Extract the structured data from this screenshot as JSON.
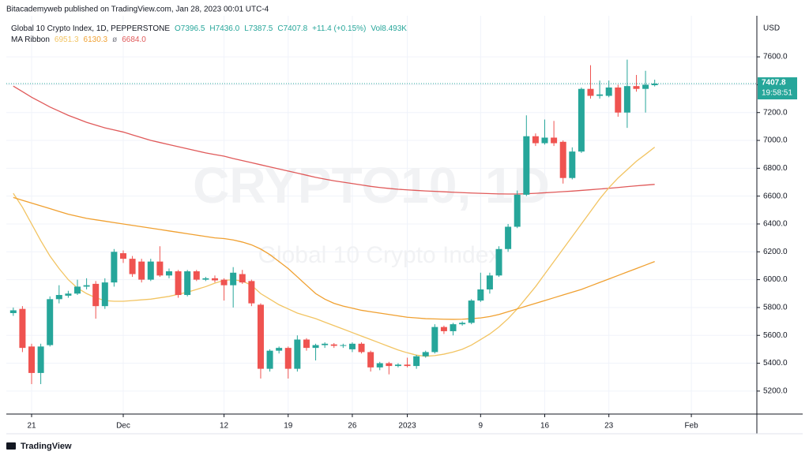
{
  "chart_data": {
    "type": "candlestick",
    "published": "Bitacademyweb published on TradingView.com, Jan 28, 2023 00:01 UTC-4",
    "symbol": "Global 10 Crypto Index, 1D, PEPPERSTONE",
    "ohlc_legend": [
      "O7396.5",
      "H7436.0",
      "L7387.5",
      "C7407.8",
      "+11.4 (+0.15%)",
      "Vol8.493K"
    ],
    "ma_legend": {
      "label": "MA Ribbon",
      "items": [
        {
          "text": "6951.3",
          "color": "#f2c462"
        },
        {
          "text": "6130.3",
          "color": "#f0a030"
        },
        {
          "text": "ø",
          "color": "#787b86"
        },
        {
          "text": "6684.0",
          "color": "#e05a5a"
        }
      ]
    },
    "watermark": [
      "CRYPTO10, 1D",
      "Global 10 Crypto Index"
    ],
    "currency": "USD",
    "last_price": 7407.8,
    "countdown": "19:58:51",
    "brand": "TradingView",
    "up_color": "#26a69a",
    "down_color": "#ef5350",
    "grid": true,
    "xlim": [
      -0.76,
      81.15
    ],
    "xticks": [
      {
        "value": 2,
        "label": "21"
      },
      {
        "value": 12,
        "label": "Dec"
      },
      {
        "value": 23,
        "label": "12"
      },
      {
        "value": 30,
        "label": "19"
      },
      {
        "value": 37,
        "label": "26"
      },
      {
        "value": 43,
        "label": "2023"
      },
      {
        "value": 51,
        "label": "9"
      },
      {
        "value": 58,
        "label": "16"
      },
      {
        "value": 65,
        "label": "23"
      },
      {
        "value": 74,
        "label": "Feb"
      }
    ],
    "ylim": [
      5035,
      7895
    ],
    "yticks": [
      {
        "value": 5200,
        "label": "5200.0"
      },
      {
        "value": 5400,
        "label": "5400.0"
      },
      {
        "value": 5600,
        "label": "5600.0"
      },
      {
        "value": 5800,
        "label": "5800.0"
      },
      {
        "value": 6000,
        "label": "6000.0"
      },
      {
        "value": 6200,
        "label": "6200.0"
      },
      {
        "value": 6400,
        "label": "6400.0"
      },
      {
        "value": 6600,
        "label": "6600.0"
      },
      {
        "value": 6800,
        "label": "6800.0"
      },
      {
        "value": 7000,
        "label": "7000.0"
      },
      {
        "value": 7200,
        "label": "7200.0"
      },
      {
        "value": 7400,
        "label": "7400.0"
      },
      {
        "value": 7600,
        "label": "7600.0"
      }
    ],
    "open": [
      5760,
      5790,
      5520,
      5330,
      5530,
      5860,
      5885,
      5900,
      5950,
      5970,
      5810,
      5980,
      6190,
      6150,
      6130,
      6000,
      6130,
      6030,
      6060,
      5890,
      6060,
      6000,
      6010,
      6000,
      5960,
      6040,
      5990,
      5820,
      5360,
      5490,
      5510,
      5360,
      5570,
      5510,
      5530,
      5535,
      5525,
      5500,
      5540,
      5480,
      5370,
      5400,
      5380,
      5390,
      5380,
      5450,
      5480,
      5660,
      5630,
      5680,
      5690,
      5850,
      5930,
      6030,
      6220,
      6380,
      6610,
      7030,
      6980,
      7020,
      6990,
      6730,
      6920,
      7370,
      7320,
      7320,
      7380,
      7200,
      7390,
      7370,
      7396.5
    ],
    "high": [
      5800,
      5810,
      5540,
      5540,
      5880,
      5960,
      5920,
      6000,
      6010,
      5990,
      6010,
      6220,
      6210,
      6170,
      6150,
      6150,
      6240,
      6080,
      6070,
      6070,
      6070,
      6020,
      6030,
      6010,
      6090,
      6070,
      6000,
      5830,
      5500,
      5520,
      5520,
      5600,
      5580,
      5540,
      5550,
      5545,
      5540,
      5550,
      5550,
      5490,
      5410,
      5410,
      5400,
      5440,
      5460,
      5490,
      5680,
      5670,
      5690,
      5700,
      5860,
      6050,
      6050,
      6240,
      6400,
      6640,
      7180,
      7050,
      7150,
      7140,
      7000,
      6950,
      7380,
      7540,
      7430,
      7430,
      7400,
      7580,
      7470,
      7500,
      7436
    ],
    "low": [
      5740,
      5480,
      5250,
      5250,
      5520,
      5830,
      5870,
      5890,
      5930,
      5720,
      5790,
      5950,
      6120,
      6020,
      5980,
      5990,
      6020,
      6010,
      5870,
      5880,
      5990,
      5990,
      5980,
      5850,
      5800,
      5970,
      5810,
      5290,
      5340,
      5470,
      5290,
      5340,
      5490,
      5420,
      5510,
      5510,
      5510,
      5480,
      5470,
      5340,
      5350,
      5320,
      5370,
      5370,
      5360,
      5440,
      5470,
      5610,
      5600,
      5670,
      5680,
      5840,
      5900,
      6020,
      6200,
      6370,
      6600,
      6960,
      6970,
      6960,
      6690,
      6720,
      6910,
      7300,
      7300,
      7310,
      7170,
      7090,
      7350,
      7200,
      7387.5
    ],
    "close": [
      5780,
      5510,
      5330,
      5520,
      5860,
      5890,
      5900,
      5950,
      5960,
      5810,
      5980,
      6200,
      6150,
      6040,
      6000,
      6130,
      6030,
      6060,
      5890,
      6060,
      6000,
      6010,
      5995,
      5960,
      6050,
      5980,
      5830,
      5360,
      5490,
      5510,
      5360,
      5570,
      5510,
      5530,
      5540,
      5525,
      5530,
      5540,
      5480,
      5370,
      5400,
      5380,
      5390,
      5380,
      5450,
      5480,
      5660,
      5630,
      5680,
      5690,
      5850,
      5930,
      6030,
      6220,
      6380,
      6610,
      7030,
      6980,
      7020,
      6980,
      6730,
      6920,
      7370,
      7320,
      7330,
      7380,
      7200,
      7390,
      7370,
      7400,
      7407.8
    ],
    "series": [
      {
        "color": "#e05a5a",
        "values": [
          7390,
          7350,
          7310,
          7275,
          7240,
          7210,
          7180,
          7155,
          7130,
          7110,
          7090,
          7075,
          7060,
          7040,
          7020,
          7000,
          6985,
          6970,
          6955,
          6940,
          6925,
          6910,
          6898,
          6887,
          6870,
          6855,
          6840,
          6825,
          6810,
          6795,
          6780,
          6765,
          6750,
          6735,
          6722,
          6710,
          6700,
          6690,
          6680,
          6670,
          6662,
          6655,
          6649,
          6645,
          6641,
          6637,
          6634,
          6631,
          6628,
          6625,
          6622,
          6620,
          6618,
          6616,
          6615,
          6615,
          6617,
          6620,
          6624,
          6628,
          6632,
          6636,
          6641,
          6646,
          6651,
          6656,
          6662,
          6668,
          6674,
          6679,
          6684
        ]
      },
      {
        "color": "#f2c462",
        "values": [
          6620,
          6520,
          6400,
          6280,
          6170,
          6080,
          6000,
          5940,
          5900,
          5870,
          5850,
          5845,
          5845,
          5850,
          5855,
          5860,
          5870,
          5880,
          5895,
          5910,
          5930,
          5950,
          5975,
          5995,
          6000,
          5990,
          5960,
          5900,
          5860,
          5820,
          5790,
          5760,
          5740,
          5720,
          5695,
          5670,
          5645,
          5620,
          5595,
          5570,
          5545,
          5520,
          5495,
          5475,
          5458,
          5450,
          5455,
          5465,
          5480,
          5500,
          5530,
          5570,
          5610,
          5660,
          5720,
          5790,
          5870,
          5950,
          6040,
          6130,
          6220,
          6310,
          6400,
          6490,
          6580,
          6660,
          6730,
          6790,
          6850,
          6900,
          6951.3
        ]
      },
      {
        "color": "#f0a030",
        "values": [
          6590,
          6570,
          6550,
          6530,
          6510,
          6490,
          6470,
          6455,
          6440,
          6430,
          6420,
          6410,
          6400,
          6390,
          6380,
          6370,
          6360,
          6350,
          6340,
          6330,
          6320,
          6310,
          6300,
          6295,
          6285,
          6270,
          6250,
          6220,
          6180,
          6130,
          6080,
          6020,
          5960,
          5900,
          5860,
          5830,
          5810,
          5795,
          5780,
          5770,
          5760,
          5750,
          5740,
          5730,
          5725,
          5720,
          5718,
          5716,
          5715,
          5716,
          5720,
          5725,
          5735,
          5750,
          5770,
          5790,
          5810,
          5830,
          5850,
          5870,
          5890,
          5910,
          5930,
          5955,
          5980,
          6005,
          6030,
          6055,
          6080,
          6105,
          6130.3
        ]
      }
    ]
  }
}
